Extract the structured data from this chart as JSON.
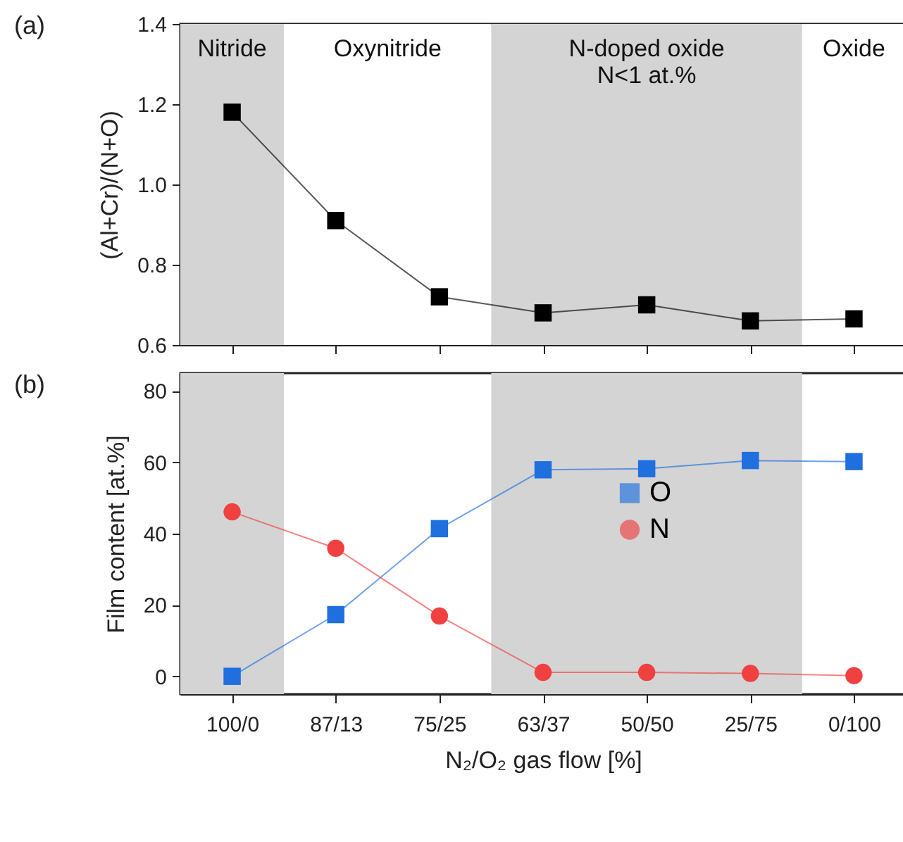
{
  "chart_data": [
    {
      "type": "line",
      "title": "(a)",
      "ylabel": "(Al+Cr)/(N+O)",
      "categories": [
        "100/0",
        "87/13",
        "75/25",
        "63/37",
        "50/50",
        "25/75",
        "0/100"
      ],
      "series": [
        {
          "color": "#000000",
          "marker": "square",
          "values": [
            1.18,
            0.91,
            0.72,
            0.68,
            0.7,
            0.66,
            0.665
          ]
        }
      ],
      "ylim": [
        0.6,
        1.4
      ],
      "yticks": [
        0.6,
        0.8,
        {
          "value": 1,
          "label": "1.0"
        },
        1.2,
        1.4
      ],
      "tick_labels": "y",
      "bands": [
        {
          "axis": "x",
          "from": "100/0",
          "to": "100/0",
          "label": "Nitride",
          "color": "#d4d4d4"
        },
        {
          "axis": "x",
          "from": "87/13",
          "to": "75/25",
          "label": "Oxynitride",
          "color": "#ffffff"
        },
        {
          "axis": "x",
          "from": "63/37",
          "to": "25/75",
          "label": "N-doped oxide\nN<1 at.%",
          "color": "#d4d4d4"
        },
        {
          "axis": "x",
          "from": "0/100",
          "to": "0/100",
          "label": "Oxide",
          "color": "#ffffff"
        }
      ]
    },
    {
      "type": "line",
      "title": "(b)",
      "xlabel": "N₂/O₂ gas flow [%]",
      "ylabel": "Film content [at.%]",
      "categories": [
        "100/0",
        "87/13",
        "75/25",
        "63/37",
        "50/50",
        "25/75",
        "0/100"
      ],
      "series": [
        {
          "name": "O",
          "color": "#1f6fdf",
          "marker": "square",
          "values": [
            0,
            17.3,
            41.4,
            57.9,
            58.2,
            60.5,
            60.2
          ]
        },
        {
          "name": "N",
          "color": "#f04040",
          "marker": "circle",
          "values": [
            46.1,
            35.9,
            16.9,
            1.1,
            1.1,
            0.8,
            0.2
          ]
        }
      ],
      "ylim": [
        -5,
        85
      ],
      "yticks": [
        0,
        20,
        40,
        60,
        80
      ],
      "legend": "right",
      "bands": [
        {
          "axis": "x",
          "from": "100/0",
          "to": "100/0",
          "color": "#d4d4d4"
        },
        {
          "axis": "x",
          "from": "63/37",
          "to": "25/75",
          "color": "#d4d4d4"
        }
      ]
    }
  ]
}
